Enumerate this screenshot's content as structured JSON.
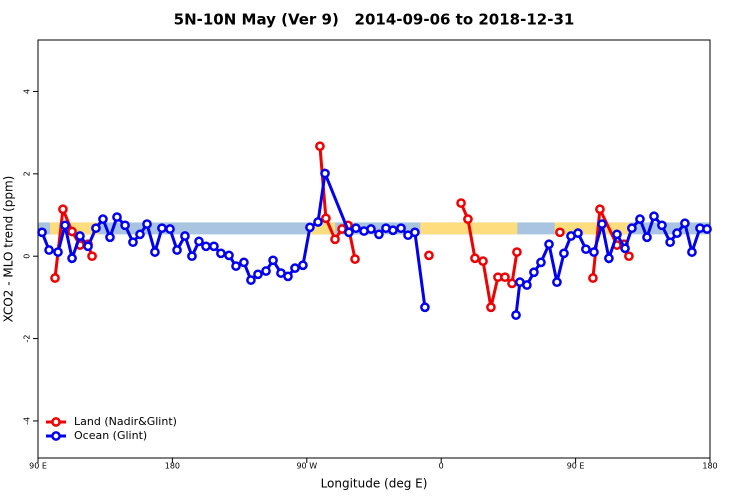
{
  "chart_data": {
    "type": "line",
    "title": "5N-10N May (Ver 9)   2014-09-06 to 2018-12-31",
    "x_label": "Longitude (deg E)",
    "y_label": "XCO2 - MLO trend (ppm)",
    "xlim": [
      90,
      540
    ],
    "ylim": [
      -4.9,
      5.25
    ],
    "xticks": [
      {
        "value": 90,
        "label": "90 E"
      },
      180,
      {
        "value": 270,
        "label": "90 W"
      },
      {
        "value": 360,
        "label": "0"
      },
      {
        "value": 450,
        "label": "90 E"
      },
      {
        "value": 540,
        "label": "180"
      }
    ],
    "yticks": [
      -4,
      -2,
      0,
      2,
      4
    ],
    "legend": "bottom-left",
    "band": {
      "ylim": [
        0.53,
        0.82
      ],
      "color": "#a9c4e0",
      "land_color": "#fedd7f",
      "land_regions": [
        [
          98,
          131
        ],
        [
          272,
          289
        ],
        [
          346,
          411
        ],
        [
          436,
          486
        ]
      ]
    },
    "series": [
      {
        "name": "Land (Nadir&Glint)",
        "color": "#ee0000",
        "x": [
          101.4,
          106.7,
          112.8,
          118.1,
          123.5,
          126.2,
          278.8,
          282.8,
          288.9,
          293.6,
          297.6,
          302.3,
          351.8,
          373.3,
          377.9,
          382.6,
          388.0,
          393.3,
          398.0,
          402.7,
          407.4,
          410.7,
          439.5,
          461.6,
          466.3,
          477.7,
          482.4,
          485.7
        ],
        "values": [
          -0.53,
          1.14,
          0.6,
          0.27,
          0.29,
          0.0,
          2.67,
          0.92,
          0.41,
          0.66,
          0.75,
          -0.07,
          0.02,
          1.29,
          0.9,
          -0.05,
          -0.12,
          -1.24,
          -0.51,
          -0.51,
          -0.66,
          0.1,
          0.58,
          -0.53,
          1.14,
          0.27,
          0.29,
          0.0
        ]
      },
      {
        "name": "Ocean (Glint)",
        "color": "#0000ee",
        "x": [
          92.7,
          97.4,
          103.4,
          108.1,
          112.8,
          118.1,
          123.5,
          128.8,
          133.5,
          138.2,
          142.9,
          148.3,
          153.6,
          158.3,
          163.0,
          168.3,
          173.0,
          178.4,
          183.1,
          188.4,
          193.1,
          197.8,
          202.5,
          207.8,
          212.5,
          217.9,
          222.6,
          227.9,
          232.6,
          237.3,
          242.7,
          247.4,
          252.7,
          257.4,
          262.1,
          267.4,
          272.1,
          277.5,
          282.2,
          298.2,
          302.9,
          308.3,
          313.0,
          318.3,
          323.0,
          327.7,
          333.1,
          337.8,
          342.4,
          349.1,
          410.1,
          412.7,
          417.4,
          422.1,
          426.8,
          432.2,
          437.5,
          442.2,
          446.9,
          451.6,
          456.9,
          462.3,
          467.7,
          472.3,
          477.7,
          483.1,
          487.7,
          493.1,
          497.8,
          502.5,
          507.8,
          513.3,
          517.9,
          523.2,
          527.9,
          533.3,
          538.0
        ],
        "values": [
          0.58,
          0.15,
          0.1,
          0.75,
          -0.05,
          0.49,
          0.24,
          0.68,
          0.9,
          0.46,
          0.95,
          0.75,
          0.34,
          0.53,
          0.78,
          0.1,
          0.68,
          0.66,
          0.15,
          0.49,
          0.0,
          0.36,
          0.24,
          0.24,
          0.07,
          0.02,
          -0.24,
          -0.15,
          -0.58,
          -0.44,
          -0.36,
          -0.1,
          -0.41,
          -0.49,
          -0.29,
          -0.22,
          0.7,
          0.83,
          2.01,
          0.58,
          0.68,
          0.61,
          0.66,
          0.53,
          0.68,
          0.63,
          0.68,
          0.51,
          0.58,
          -1.24,
          -1.43,
          -0.63,
          -0.7,
          -0.39,
          -0.15,
          0.29,
          -0.63,
          0.07,
          0.49,
          0.56,
          0.17,
          0.1,
          0.78,
          -0.05,
          0.53,
          0.19,
          0.68,
          0.9,
          0.46,
          0.97,
          0.75,
          0.34,
          0.56,
          0.8,
          0.1,
          0.68,
          0.66
        ]
      }
    ]
  }
}
